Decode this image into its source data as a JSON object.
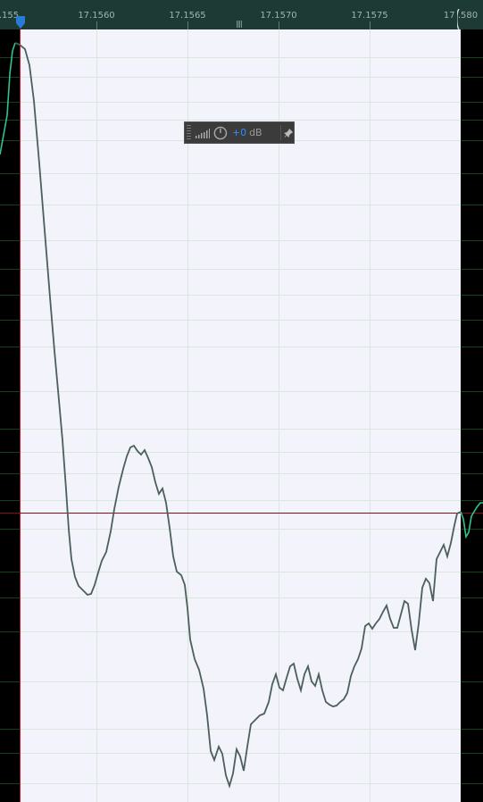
{
  "ruler": {
    "start_label": ".155",
    "ticks": [
      {
        "label": "17.1560"
      },
      {
        "label": "17.1565"
      },
      {
        "label": "17.1570"
      },
      {
        "label": "17.1575"
      },
      {
        "label": "17.1580",
        "display": "17 .580"
      }
    ],
    "zoom_marker": "||||"
  },
  "hud": {
    "gain_value": "+0",
    "gain_unit": "dB",
    "icons": [
      "grip-icon",
      "level-meter-icon",
      "gain-knob-icon",
      "pin-icon"
    ]
  },
  "colors": {
    "ruler_bg": "#1d3a34",
    "selection_bg": "#f2f3fb",
    "waveform_selected": "#4c5f5b",
    "waveform_unselected": "#2fc48a",
    "center_line": "#8b0a14",
    "playhead_marker": "#2a7bd6",
    "hud_value": "#2f8cff"
  }
}
